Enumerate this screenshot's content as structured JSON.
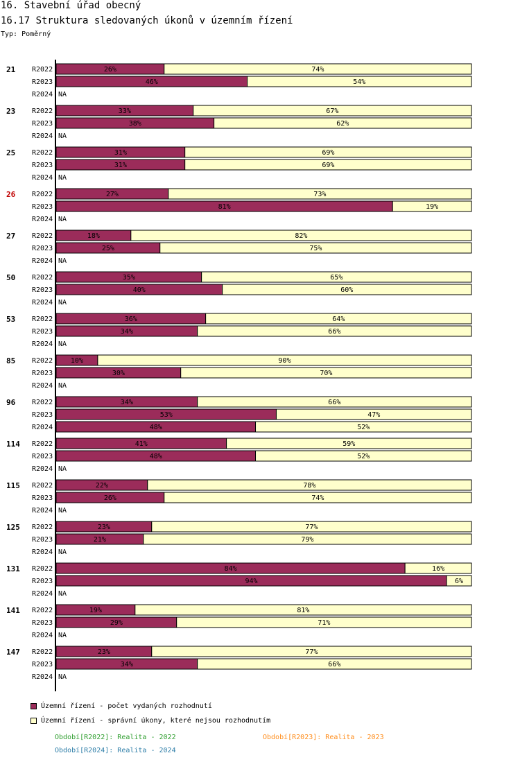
{
  "header": {
    "title": "16. Stavební úřad obecný",
    "subtitle": "16.17 Struktura sledovaných úkonů v územním řízení",
    "type_label": "Typ: Poměrný"
  },
  "colors": {
    "series1": "#9b2c5a",
    "series2": "#ffffcc",
    "highlight_group": "#c00000"
  },
  "chart_data": {
    "type": "bar",
    "orientation": "horizontal",
    "stacked": "percent",
    "xlim": [
      0,
      100
    ],
    "series_names": [
      "Územní řízení - počet vydaných rozhodnutí",
      "Územní řízení - správní úkony, které nejsou rozhodnutím"
    ],
    "na_label": "NA",
    "highlighted_group": "26",
    "groups": [
      {
        "label": "21",
        "rows": [
          {
            "period": "R2022",
            "values": [
              26,
              74
            ]
          },
          {
            "period": "R2023",
            "values": [
              46,
              54
            ]
          },
          {
            "period": "R2024",
            "values": null
          }
        ]
      },
      {
        "label": "23",
        "rows": [
          {
            "period": "R2022",
            "values": [
              33,
              67
            ]
          },
          {
            "period": "R2023",
            "values": [
              38,
              62
            ]
          },
          {
            "period": "R2024",
            "values": null
          }
        ]
      },
      {
        "label": "25",
        "rows": [
          {
            "period": "R2022",
            "values": [
              31,
              69
            ]
          },
          {
            "period": "R2023",
            "values": [
              31,
              69
            ]
          },
          {
            "period": "R2024",
            "values": null
          }
        ]
      },
      {
        "label": "26",
        "rows": [
          {
            "period": "R2022",
            "values": [
              27,
              73
            ]
          },
          {
            "period": "R2023",
            "values": [
              81,
              19
            ]
          },
          {
            "period": "R2024",
            "values": null
          }
        ]
      },
      {
        "label": "27",
        "rows": [
          {
            "period": "R2022",
            "values": [
              18,
              82
            ]
          },
          {
            "period": "R2023",
            "values": [
              25,
              75
            ]
          },
          {
            "period": "R2024",
            "values": null
          }
        ]
      },
      {
        "label": "50",
        "rows": [
          {
            "period": "R2022",
            "values": [
              35,
              65
            ]
          },
          {
            "period": "R2023",
            "values": [
              40,
              60
            ]
          },
          {
            "period": "R2024",
            "values": null
          }
        ]
      },
      {
        "label": "53",
        "rows": [
          {
            "period": "R2022",
            "values": [
              36,
              64
            ]
          },
          {
            "period": "R2023",
            "values": [
              34,
              66
            ]
          },
          {
            "period": "R2024",
            "values": null
          }
        ]
      },
      {
        "label": "85",
        "rows": [
          {
            "period": "R2022",
            "values": [
              10,
              90
            ]
          },
          {
            "period": "R2023",
            "values": [
              30,
              70
            ]
          },
          {
            "period": "R2024",
            "values": null
          }
        ]
      },
      {
        "label": "96",
        "rows": [
          {
            "period": "R2022",
            "values": [
              34,
              66
            ]
          },
          {
            "period": "R2023",
            "values": [
              53,
              47
            ]
          },
          {
            "period": "R2024",
            "values": [
              48,
              52
            ]
          }
        ]
      },
      {
        "label": "114",
        "rows": [
          {
            "period": "R2022",
            "values": [
              41,
              59
            ]
          },
          {
            "period": "R2023",
            "values": [
              48,
              52
            ]
          },
          {
            "period": "R2024",
            "values": null
          }
        ]
      },
      {
        "label": "115",
        "rows": [
          {
            "period": "R2022",
            "values": [
              22,
              78
            ]
          },
          {
            "period": "R2023",
            "values": [
              26,
              74
            ]
          },
          {
            "period": "R2024",
            "values": null
          }
        ]
      },
      {
        "label": "125",
        "rows": [
          {
            "period": "R2022",
            "values": [
              23,
              77
            ]
          },
          {
            "period": "R2023",
            "values": [
              21,
              79
            ]
          },
          {
            "period": "R2024",
            "values": null
          }
        ]
      },
      {
        "label": "131",
        "rows": [
          {
            "period": "R2022",
            "values": [
              84,
              16
            ]
          },
          {
            "period": "R2023",
            "values": [
              94,
              6
            ]
          },
          {
            "period": "R2024",
            "values": null
          }
        ]
      },
      {
        "label": "141",
        "rows": [
          {
            "period": "R2022",
            "values": [
              19,
              81
            ]
          },
          {
            "period": "R2023",
            "values": [
              29,
              71
            ]
          },
          {
            "period": "R2024",
            "values": null
          }
        ]
      },
      {
        "label": "147",
        "rows": [
          {
            "period": "R2022",
            "values": [
              23,
              77
            ]
          },
          {
            "period": "R2023",
            "values": [
              34,
              66
            ]
          },
          {
            "period": "R2024",
            "values": null
          }
        ]
      }
    ]
  },
  "legend": {
    "items": [
      {
        "label": "Územní řízení - počet vydaných rozhodnutí",
        "color": "#9b2c5a"
      },
      {
        "label": "Územní řízení - správní úkony, které nejsou rozhodnutím",
        "color": "#ffffcc"
      }
    ],
    "periods": [
      {
        "text": "Období[R2022]: Realita - 2022",
        "color": "#2e9e2e"
      },
      {
        "text": "Období[R2023]: Realita - 2023",
        "color": "#ff8c1a"
      },
      {
        "text": "Období[R2024]: Realita - 2024",
        "color": "#2e7ea8"
      }
    ]
  }
}
